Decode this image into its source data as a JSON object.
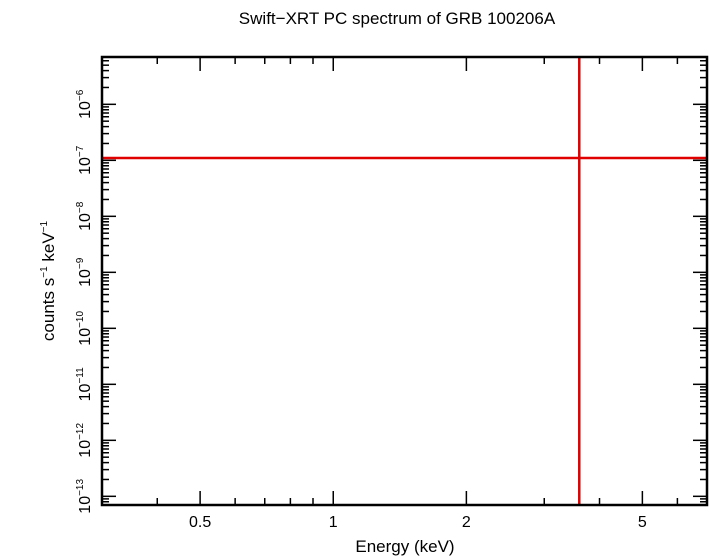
{
  "chart_data": {
    "type": "line",
    "title": "Swift−XRT PC spectrum of GRB 100206A",
    "xlabel": "Energy (keV)",
    "ylabel_base": "counts s",
    "ylabel_exp1": "−1",
    "ylabel_mid": " keV",
    "ylabel_exp2": "−1",
    "xscale": "log",
    "yscale": "log",
    "xlim": [
      0.3,
      7.0
    ],
    "ylim": [
      7e-14,
      7e-06
    ],
    "x_ticks": [
      {
        "value": 0.5,
        "label": "0.5"
      },
      {
        "value": 1,
        "label": "1"
      },
      {
        "value": 2,
        "label": "2"
      },
      {
        "value": 5,
        "label": "5"
      }
    ],
    "y_ticks": [
      {
        "value": 1e-13,
        "base": "10",
        "exp": "−13"
      },
      {
        "value": 1e-12,
        "base": "10",
        "exp": "−12"
      },
      {
        "value": 1e-11,
        "base": "10",
        "exp": "−11"
      },
      {
        "value": 1e-10,
        "base": "10",
        "exp": "−10"
      },
      {
        "value": 1e-09,
        "base": "10",
        "exp": "−9"
      },
      {
        "value": 1e-08,
        "base": "10",
        "exp": "−8"
      },
      {
        "value": 1e-07,
        "base": "10",
        "exp": "−7"
      },
      {
        "value": 1e-06,
        "base": "10",
        "exp": "−6"
      }
    ],
    "lines": [
      {
        "orientation": "horizontal",
        "value": 1.1e-07,
        "color": "#e00000"
      },
      {
        "orientation": "vertical",
        "value": 3.6,
        "color": "#e00000"
      }
    ],
    "grid": false,
    "frame_color": "#000000"
  }
}
